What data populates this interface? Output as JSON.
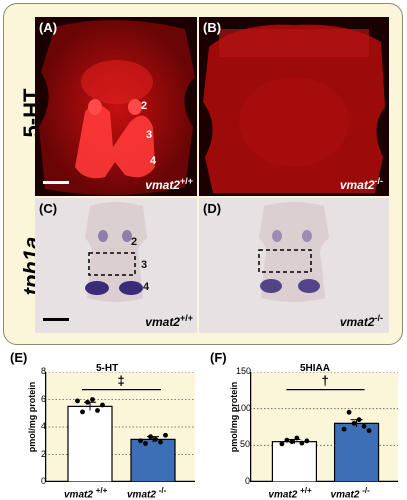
{
  "rows": {
    "top": "5-HT",
    "bottom": "tph1a"
  },
  "panels": [
    {
      "id": "A",
      "label": "(A)",
      "genotype": "vmat2",
      "sup": "+/+",
      "numbers": [
        "2",
        "3",
        "4"
      ]
    },
    {
      "id": "B",
      "label": "(B)",
      "genotype": "vmat2",
      "sup": "-/-"
    },
    {
      "id": "C",
      "label": "(C)",
      "genotype": "vmat2",
      "sup": "+/+",
      "numbers": [
        "2",
        "3",
        "4"
      ]
    },
    {
      "id": "D",
      "label": "(D)",
      "genotype": "vmat2",
      "sup": "-/-"
    }
  ],
  "colors": {
    "fluorescence": "#e01010",
    "ish_stain": "#3b2c7a",
    "bar_ko": "#3d6fb6",
    "plot_bg": "#fbf6d9"
  },
  "chart_data": [
    {
      "type": "bar",
      "panel_label": "(E)",
      "title": "5-HT",
      "ylabel": "pmol/mg protein",
      "categories": [
        "vmat2 +/+",
        "vmat2 -/-"
      ],
      "category_names": [
        "vmat2",
        "vmat2"
      ],
      "category_sups": [
        "+/+",
        "-/-"
      ],
      "values": [
        5.5,
        3.1
      ],
      "errors": [
        0.3,
        0.2
      ],
      "points": [
        [
          5.9,
          5.1,
          5.8,
          6.0,
          5.2,
          5.6
        ],
        [
          3.0,
          2.8,
          3.3,
          3.1,
          2.9,
          3.4
        ]
      ],
      "ylim": [
        0,
        8
      ],
      "yticks": [
        "0",
        "2",
        "4",
        "6",
        "8"
      ],
      "significance": "‡",
      "grid": "horizontal dotted"
    },
    {
      "type": "bar",
      "panel_label": "(F)",
      "title": "5HIAA",
      "ylabel": "pmol/mg protein",
      "categories": [
        "vmat2 +/+",
        "vmat2 -/-"
      ],
      "category_names": [
        "vmat2",
        "vmat2"
      ],
      "category_sups": [
        "+/+",
        "-/-"
      ],
      "values": [
        55,
        80
      ],
      "errors": [
        3,
        5
      ],
      "points": [
        [
          52,
          57,
          55,
          60,
          53,
          56
        ],
        [
          72,
          95,
          80,
          85,
          76,
          70
        ]
      ],
      "ylim": [
        0,
        150
      ],
      "yticks": [
        "0",
        "50",
        "100",
        "150"
      ],
      "significance": "†",
      "grid": "horizontal dotted"
    }
  ]
}
